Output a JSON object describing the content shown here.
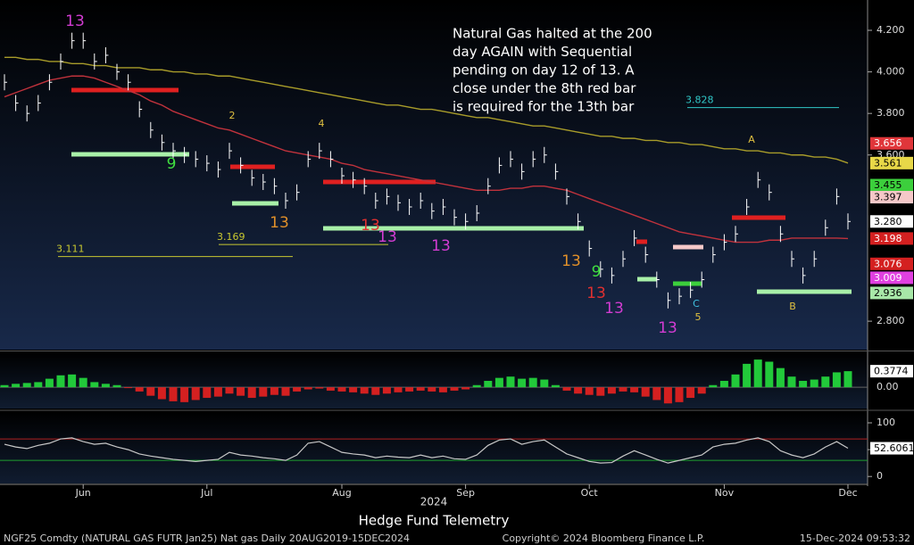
{
  "chart_data": [
    {
      "type": "ohlc",
      "annotation_lines": [
        "Natural Gas halted at the 200",
        "day AGAIN with Sequential",
        "pending on day 12 of 13.  A",
        "close under the 8th red bar",
        "is required for the 13th bar"
      ],
      "x_label": "2024",
      "categories": [
        null,
        null,
        null,
        null,
        null,
        null,
        null,
        "Jun",
        null,
        null,
        null,
        null,
        null,
        null,
        null,
        null,
        null,
        null,
        "Jul",
        null,
        null,
        null,
        null,
        null,
        null,
        null,
        null,
        null,
        null,
        null,
        "Aug",
        null,
        null,
        null,
        null,
        null,
        null,
        null,
        null,
        null,
        null,
        "Sep",
        null,
        null,
        null,
        null,
        null,
        null,
        null,
        null,
        null,
        null,
        "Oct",
        null,
        null,
        null,
        null,
        null,
        null,
        null,
        null,
        null,
        null,
        null,
        "Nov",
        null,
        null,
        null,
        null,
        null,
        null,
        null,
        null,
        null,
        null,
        "Dec"
      ],
      "close": {
        "color": "#ffffff",
        "values": [
          3.95,
          3.85,
          3.8,
          3.85,
          3.95,
          4.05,
          4.15,
          4.15,
          4.05,
          4.08,
          4.0,
          3.95,
          3.82,
          3.72,
          3.66,
          3.62,
          3.6,
          3.58,
          3.56,
          3.53,
          3.62,
          3.55,
          3.49,
          3.47,
          3.45,
          3.38,
          3.42,
          3.58,
          3.62,
          3.58,
          3.5,
          3.48,
          3.45,
          3.38,
          3.4,
          3.37,
          3.35,
          3.38,
          3.33,
          3.35,
          3.3,
          3.28,
          3.32,
          3.45,
          3.55,
          3.58,
          3.52,
          3.58,
          3.6,
          3.52,
          3.4,
          3.28,
          3.15,
          3.05,
          3.02,
          3.1,
          3.2,
          3.12,
          3.0,
          2.9,
          2.92,
          2.95,
          3.0,
          3.12,
          3.18,
          3.22,
          3.35,
          3.48,
          3.42,
          3.22,
          3.1,
          3.02,
          3.1,
          3.25,
          3.4,
          3.28
        ]
      },
      "moving_averages": [
        {
          "color": "#a89c2a",
          "values": [
            4.07,
            4.07,
            4.06,
            4.06,
            4.05,
            4.05,
            4.04,
            4.04,
            4.03,
            4.03,
            4.02,
            4.02,
            4.02,
            4.01,
            4.01,
            4.0,
            4.0,
            3.99,
            3.99,
            3.98,
            3.98,
            3.97,
            3.96,
            3.95,
            3.94,
            3.93,
            3.92,
            3.91,
            3.9,
            3.89,
            3.88,
            3.87,
            3.86,
            3.85,
            3.84,
            3.84,
            3.83,
            3.82,
            3.82,
            3.81,
            3.8,
            3.79,
            3.78,
            3.78,
            3.77,
            3.76,
            3.75,
            3.74,
            3.74,
            3.73,
            3.72,
            3.71,
            3.7,
            3.69,
            3.69,
            3.68,
            3.68,
            3.67,
            3.67,
            3.66,
            3.66,
            3.65,
            3.65,
            3.64,
            3.63,
            3.63,
            3.62,
            3.62,
            3.61,
            3.61,
            3.6,
            3.6,
            3.59,
            3.59,
            3.58,
            3.561
          ]
        },
        {
          "color": "#c0323c",
          "values": [
            3.88,
            3.9,
            3.92,
            3.94,
            3.96,
            3.97,
            3.98,
            3.98,
            3.97,
            3.95,
            3.93,
            3.91,
            3.89,
            3.86,
            3.84,
            3.81,
            3.79,
            3.77,
            3.75,
            3.73,
            3.72,
            3.7,
            3.68,
            3.66,
            3.64,
            3.62,
            3.61,
            3.6,
            3.59,
            3.58,
            3.56,
            3.55,
            3.53,
            3.52,
            3.51,
            3.5,
            3.49,
            3.48,
            3.47,
            3.46,
            3.45,
            3.44,
            3.43,
            3.43,
            3.43,
            3.44,
            3.44,
            3.45,
            3.45,
            3.44,
            3.43,
            3.41,
            3.39,
            3.37,
            3.35,
            3.33,
            3.31,
            3.29,
            3.27,
            3.25,
            3.23,
            3.22,
            3.21,
            3.2,
            3.19,
            3.18,
            3.18,
            3.18,
            3.19,
            3.19,
            3.2,
            3.2,
            3.2,
            3.2,
            3.2,
            3.198
          ]
        }
      ],
      "ylim": [
        2.663,
        4.346
      ],
      "yticks": [
        {
          "value": 2.8,
          "label": "2.800"
        },
        {
          "value": 3.6,
          "label": "3.600"
        },
        {
          "value": 3.8,
          "label": "3.800"
        },
        {
          "value": 4.0,
          "label": "4.000"
        },
        {
          "value": 4.2,
          "label": "4.200"
        }
      ],
      "levels": [
        {
          "value": 3.828,
          "label": "3.828",
          "color": "#30c8c8"
        },
        {
          "value": 3.169,
          "label": "3.169",
          "color": "#c8c830"
        },
        {
          "value": 3.111,
          "label": "3.111",
          "color": "#c8c830"
        }
      ],
      "price_tags": [
        {
          "value": 3.656,
          "label": "3.656",
          "bg": "#e0363a",
          "text_color": "#ffffff"
        },
        {
          "value": 3.561,
          "label": "3.561",
          "bg": "#e8d848",
          "text_color": "#000000"
        },
        {
          "value": 3.455,
          "label": "3.455",
          "bg": "#3ccf3c",
          "text_color": "#000000"
        },
        {
          "value": 3.397,
          "label": "3.397",
          "bg": "#f5c8c8",
          "text_color": "#000000"
        },
        {
          "value": 3.28,
          "label": "3.280",
          "bg": "#ffffff",
          "text_color": "#000000"
        },
        {
          "value": 3.198,
          "label": "3.198",
          "bg": "#d42020",
          "text_color": "#ffffff"
        },
        {
          "value": 3.076,
          "label": "3.076",
          "bg": "#d42020",
          "text_color": "#ffffff"
        },
        {
          "value": 3.009,
          "label": "3.009",
          "bg": "#e040e0",
          "text_color": "#ffffff"
        },
        {
          "value": 2.936,
          "label": "2.936",
          "bg": "#a8e8a8",
          "text_color": "#000000"
        }
      ],
      "counts": [
        {
          "text": "13",
          "color": "#d23cd2"
        },
        {
          "text": "13",
          "color": "#d23cd2"
        },
        {
          "text": "13",
          "color": "#d23cd2"
        },
        {
          "text": "13",
          "color": "#d23cd2"
        },
        {
          "text": "13",
          "color": "#d23cd2"
        },
        {
          "text": "13",
          "color": "#e0902a"
        },
        {
          "text": "13",
          "color": "#e0902a"
        },
        {
          "text": "13",
          "color": "#e03030"
        },
        {
          "text": "13",
          "color": "#e03030"
        },
        {
          "text": "9",
          "color": "#40e040"
        },
        {
          "text": "9",
          "color": "#40e040"
        },
        {
          "text": "2",
          "color": "#e0c040"
        },
        {
          "text": "4",
          "color": "#e0c040"
        },
        {
          "text": "A",
          "color": "#e0c040"
        },
        {
          "text": "B",
          "color": "#e0c040"
        },
        {
          "text": "5",
          "color": "#e0c040"
        },
        {
          "text": "C",
          "color": "#40c0e0"
        }
      ]
    },
    {
      "type": "bar",
      "values": [
        0.05,
        0.08,
        0.1,
        0.12,
        0.2,
        0.28,
        0.3,
        0.22,
        0.12,
        0.08,
        0.05,
        -0.02,
        -0.1,
        -0.2,
        -0.28,
        -0.33,
        -0.35,
        -0.3,
        -0.25,
        -0.22,
        -0.15,
        -0.2,
        -0.25,
        -0.22,
        -0.18,
        -0.2,
        -0.1,
        -0.05,
        -0.03,
        -0.08,
        -0.1,
        -0.12,
        -0.15,
        -0.18,
        -0.15,
        -0.12,
        -0.1,
        -0.08,
        -0.1,
        -0.12,
        -0.08,
        -0.05,
        0.05,
        0.15,
        0.22,
        0.25,
        0.2,
        0.22,
        0.18,
        0.05,
        -0.08,
        -0.15,
        -0.18,
        -0.2,
        -0.15,
        -0.1,
        -0.12,
        -0.22,
        -0.3,
        -0.38,
        -0.35,
        -0.25,
        -0.15,
        0.05,
        0.15,
        0.3,
        0.55,
        0.65,
        0.6,
        0.45,
        0.25,
        0.15,
        0.18,
        0.25,
        0.35,
        0.3774
      ],
      "positive_color": "#22c93a",
      "negative_color": "#d42020",
      "ylim": [
        -0.5,
        0.82
      ],
      "yticks": [
        {
          "value": 0,
          "label": "0.00"
        }
      ]
    },
    {
      "type": "line",
      "color": "#c8c8c8",
      "values": [
        60,
        55,
        52,
        58,
        62,
        70,
        72,
        65,
        60,
        62,
        55,
        50,
        42,
        38,
        35,
        32,
        30,
        28,
        30,
        32,
        45,
        40,
        38,
        35,
        33,
        30,
        40,
        62,
        65,
        55,
        45,
        42,
        40,
        35,
        38,
        36,
        35,
        40,
        35,
        38,
        33,
        32,
        40,
        58,
        68,
        70,
        60,
        65,
        68,
        55,
        42,
        35,
        28,
        25,
        26,
        38,
        48,
        40,
        32,
        25,
        30,
        35,
        40,
        55,
        60,
        62,
        68,
        72,
        65,
        48,
        40,
        35,
        42,
        55,
        65,
        52.6061
      ],
      "ylim": [
        -13,
        120
      ],
      "yticks": [
        0,
        50,
        100
      ],
      "levels": [
        {
          "value": 70,
          "color": "#b02020"
        },
        {
          "value": 30,
          "color": "#1fa030"
        }
      ]
    }
  ],
  "watermark": "Hedge Fund Telemetry",
  "footer": {
    "left": "NGF25 Comdty (NATURAL GAS FUTR  Jan25) Nat gas  Daily 20AUG2019-15DEC2024",
    "center": "Copyright© 2024 Bloomberg Finance L.P.",
    "right": "15-Dec-2024 09:53:32"
  }
}
